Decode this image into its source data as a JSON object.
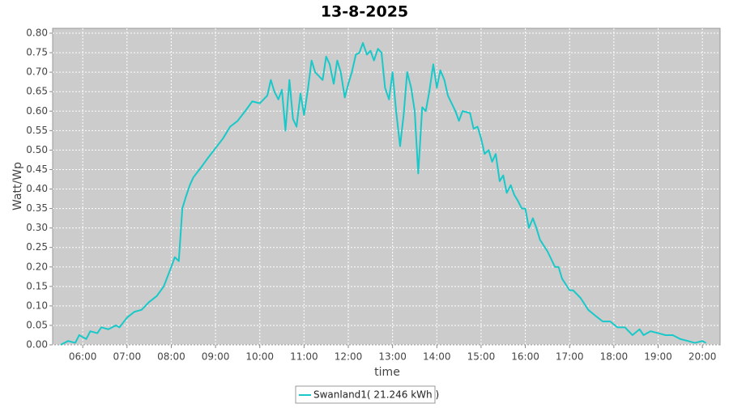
{
  "chart_data": {
    "type": "line",
    "title": "13-8-2025",
    "x_label": "time",
    "y_label": "Watt/Wp",
    "grid": true,
    "legend_position": "bottom",
    "xlim": [
      5.32,
      20.4
    ],
    "ylim": [
      0,
      0.8125
    ],
    "xticks": [
      {
        "value": 6,
        "label": "06:00"
      },
      {
        "value": 7,
        "label": "07:00"
      },
      {
        "value": 8,
        "label": "08:00"
      },
      {
        "value": 9,
        "label": "09:00"
      },
      {
        "value": 10,
        "label": "10:00"
      },
      {
        "value": 11,
        "label": "11:00"
      },
      {
        "value": 12,
        "label": "12:00"
      },
      {
        "value": 13,
        "label": "13:00"
      },
      {
        "value": 14,
        "label": "14:00"
      },
      {
        "value": 15,
        "label": "15:00"
      },
      {
        "value": 16,
        "label": "16:00"
      },
      {
        "value": 17,
        "label": "17:00"
      },
      {
        "value": 18,
        "label": "18:00"
      },
      {
        "value": 19,
        "label": "19:00"
      },
      {
        "value": 20,
        "label": "20:00"
      }
    ],
    "yticks": [
      {
        "value": 0,
        "label": "0.00"
      },
      0.05,
      {
        "value": 0.1,
        "label": "0.10"
      },
      0.15,
      {
        "value": 0.2,
        "label": "0.20"
      },
      0.25,
      {
        "value": 0.3,
        "label": "0.30"
      },
      0.35,
      {
        "value": 0.4,
        "label": "0.40"
      },
      0.45,
      {
        "value": 0.5,
        "label": "0.50"
      },
      0.55,
      {
        "value": 0.6,
        "label": "0.60"
      },
      0.65,
      {
        "value": 0.7,
        "label": "0.70"
      },
      0.75,
      {
        "value": 0.8,
        "label": "0.80"
      }
    ],
    "x": [
      5.5,
      5.67,
      5.83,
      5.92,
      6.08,
      6.17,
      6.33,
      6.42,
      6.58,
      6.75,
      6.83,
      7.0,
      7.17,
      7.33,
      7.5,
      7.67,
      7.83,
      8.0,
      8.08,
      8.17,
      8.25,
      8.33,
      8.42,
      8.5,
      8.67,
      8.83,
      9.0,
      9.17,
      9.33,
      9.5,
      9.67,
      9.83,
      10.0,
      10.17,
      10.25,
      10.33,
      10.42,
      10.5,
      10.58,
      10.67,
      10.75,
      10.83,
      10.92,
      11.0,
      11.08,
      11.17,
      11.25,
      11.42,
      11.5,
      11.58,
      11.67,
      11.75,
      11.83,
      11.92,
      12.0,
      12.08,
      12.17,
      12.25,
      12.33,
      12.42,
      12.5,
      12.58,
      12.67,
      12.75,
      12.83,
      12.92,
      13.0,
      13.08,
      13.17,
      13.25,
      13.33,
      13.42,
      13.5,
      13.58,
      13.67,
      13.75,
      13.83,
      13.92,
      14.0,
      14.08,
      14.17,
      14.25,
      14.42,
      14.5,
      14.58,
      14.75,
      14.83,
      14.92,
      15.0,
      15.08,
      15.17,
      15.25,
      15.33,
      15.42,
      15.5,
      15.58,
      15.67,
      15.75,
      15.83,
      15.92,
      16.0,
      16.08,
      16.17,
      16.25,
      16.33,
      16.5,
      16.67,
      16.75,
      16.83,
      17.0,
      17.08,
      17.25,
      17.42,
      17.58,
      17.75,
      17.92,
      18.08,
      18.25,
      18.42,
      18.58,
      18.67,
      18.83,
      19.0,
      19.17,
      19.33,
      19.5,
      19.67,
      19.83,
      20.0,
      20.08
    ],
    "series": [
      {
        "name": "Swanland1( 21.246 kWh )",
        "color": "#19c8c8",
        "values": [
          0,
          0.01,
          0.005,
          0.025,
          0.015,
          0.035,
          0.03,
          0.045,
          0.04,
          0.05,
          0.045,
          0.07,
          0.085,
          0.09,
          0.11,
          0.125,
          0.15,
          0.2,
          0.225,
          0.215,
          0.35,
          0.38,
          0.41,
          0.43,
          0.455,
          0.48,
          0.505,
          0.53,
          0.56,
          0.575,
          0.6,
          0.625,
          0.62,
          0.64,
          0.68,
          0.65,
          0.63,
          0.655,
          0.55,
          0.68,
          0.58,
          0.56,
          0.645,
          0.59,
          0.65,
          0.73,
          0.7,
          0.68,
          0.74,
          0.72,
          0.67,
          0.73,
          0.7,
          0.635,
          0.67,
          0.7,
          0.745,
          0.75,
          0.775,
          0.745,
          0.755,
          0.73,
          0.76,
          0.75,
          0.66,
          0.63,
          0.7,
          0.6,
          0.51,
          0.59,
          0.7,
          0.66,
          0.6,
          0.44,
          0.61,
          0.6,
          0.65,
          0.72,
          0.66,
          0.705,
          0.68,
          0.64,
          0.6,
          0.575,
          0.6,
          0.595,
          0.555,
          0.56,
          0.53,
          0.49,
          0.5,
          0.47,
          0.49,
          0.42,
          0.435,
          0.39,
          0.41,
          0.385,
          0.37,
          0.35,
          0.35,
          0.3,
          0.325,
          0.3,
          0.27,
          0.24,
          0.2,
          0.2,
          0.17,
          0.14,
          0.14,
          0.12,
          0.09,
          0.075,
          0.06,
          0.06,
          0.045,
          0.045,
          0.025,
          0.04,
          0.025,
          0.035,
          0.03,
          0.025,
          0.025,
          0.015,
          0.01,
          0.005,
          0.01,
          0.005
        ]
      }
    ]
  }
}
